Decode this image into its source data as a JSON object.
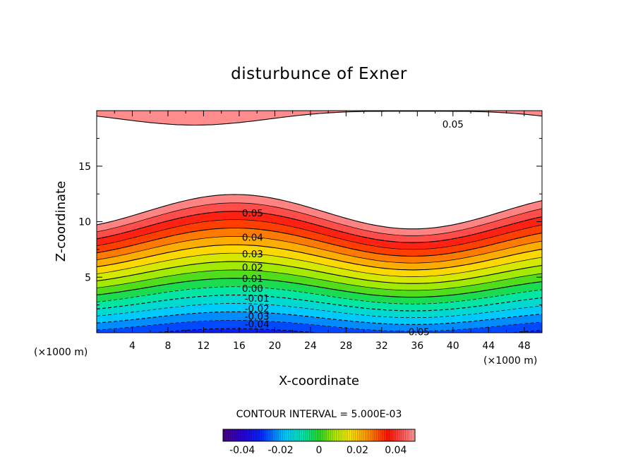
{
  "chart_data": {
    "type": "contour",
    "title": "disturbunce of Exner",
    "xlabel": "X-coordinate",
    "ylabel": "Z-coordinate",
    "x_unit_left": "(×1000 m)",
    "x_unit_right": "(×1000 m)",
    "xlim": [
      0,
      50
    ],
    "ylim": [
      0,
      20
    ],
    "x_ticks": [
      4,
      8,
      12,
      16,
      20,
      24,
      28,
      32,
      36,
      40,
      44,
      48
    ],
    "y_ticks": [
      5,
      10,
      15
    ],
    "x_tick_labels": [
      "4",
      "8",
      "12",
      "16",
      "20",
      "24",
      "28",
      "32",
      "36",
      "40",
      "44",
      "48"
    ],
    "y_tick_labels": [
      "5",
      "10",
      "15"
    ],
    "contour_interval_text": "CONTOUR INTERVAL = 5.000E-03",
    "contour_interval": 0.005,
    "level_range": [
      -0.05,
      0.05
    ],
    "negative_contours_dashed": true,
    "contour_labels": [
      {
        "text": "0.05",
        "x": 17.5,
        "y": 10.8
      },
      {
        "text": "0.04",
        "x": 17.5,
        "y": 8.6
      },
      {
        "text": "0.03",
        "x": 17.5,
        "y": 7.1
      },
      {
        "text": "0.02",
        "x": 17.5,
        "y": 5.9
      },
      {
        "text": "0.01",
        "x": 17.5,
        "y": 4.9
      },
      {
        "text": "0.00",
        "x": 17.5,
        "y": 4.0
      },
      {
        "text": "-0.01",
        "x": 18.0,
        "y": 3.1
      },
      {
        "text": "-0.02",
        "x": 18.0,
        "y": 2.2
      },
      {
        "text": "-0.03",
        "x": 18.0,
        "y": 1.5
      },
      {
        "text": "-0.04",
        "x": 18.0,
        "y": 0.8
      },
      {
        "text": "0.05",
        "x": 40.0,
        "y": 18.8
      },
      {
        "text": "-0.05",
        "x": 36.0,
        "y": 0.1
      }
    ],
    "colorbar": {
      "tick_labels": [
        "-0.04",
        "-0.02",
        "0",
        "0.02",
        "0.04"
      ],
      "tick_values": [
        -0.04,
        -0.02,
        0,
        0.02,
        0.04
      ]
    }
  }
}
